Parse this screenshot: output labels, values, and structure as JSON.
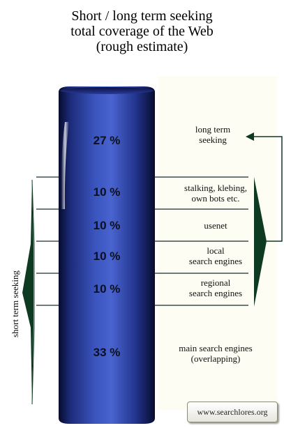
{
  "title": {
    "line1": "Short / long term seeking",
    "line2": "total coverage of the Web",
    "line3": "(rough estimate)"
  },
  "segments": [
    {
      "percent": "27 %",
      "label1": "long term",
      "label2": "seeking"
    },
    {
      "percent": "10 %",
      "label1": "stalking, klebing,",
      "label2": "own bots etc."
    },
    {
      "percent": "10 %",
      "label1": "usenet",
      "label2": ""
    },
    {
      "percent": "10 %",
      "label1": "local",
      "label2": "search engines"
    },
    {
      "percent": "10 %",
      "label1": "regional",
      "label2": "search engines"
    },
    {
      "percent": "33 %",
      "label1": "main search engines",
      "label2": "(overlapping)"
    }
  ],
  "side_label": "short term seeking",
  "footer": "www.searchlores.org",
  "colors": {
    "cylinder_dark": "#0b1036",
    "cylinder_mid": "#2a3f9a",
    "cylinder_light": "#6f85d8",
    "arrow_green": "#0f3a22",
    "divider": "#1c2a33"
  }
}
